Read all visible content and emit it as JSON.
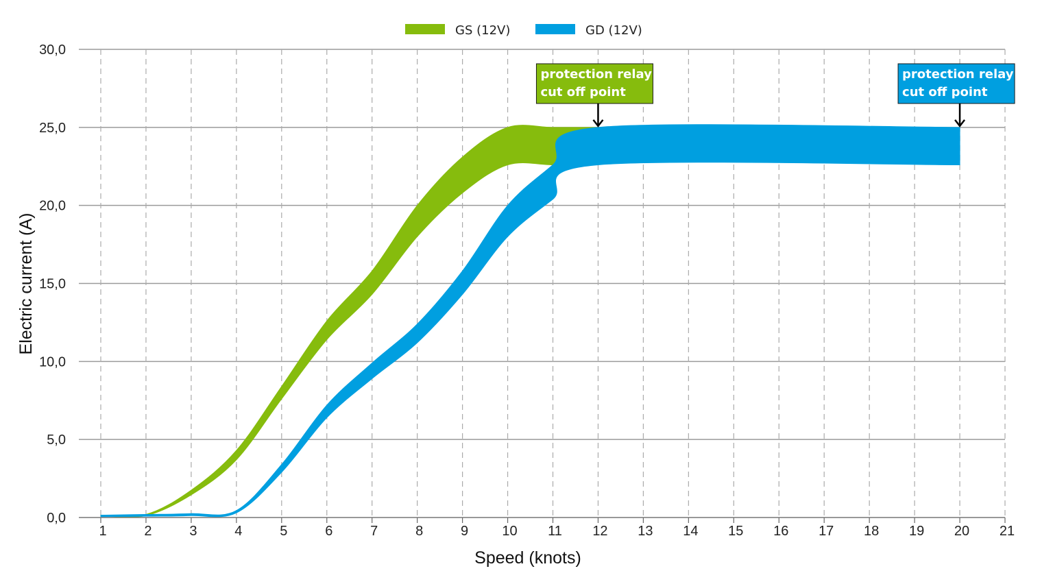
{
  "chart_data": {
    "type": "area",
    "title": "",
    "xlabel": "Speed (knots)",
    "ylabel": "Electric current (A)",
    "xlim": [
      1,
      21
    ],
    "ylim": [
      0,
      30
    ],
    "x_ticks": [
      1,
      2,
      3,
      4,
      5,
      6,
      7,
      8,
      9,
      10,
      11,
      12,
      13,
      14,
      15,
      16,
      17,
      18,
      19,
      20,
      21
    ],
    "y_ticks": [
      0,
      5,
      10,
      15,
      20,
      25,
      30
    ],
    "y_tick_labels": [
      "0,0",
      "5,0",
      "10,0",
      "15,0",
      "20,0",
      "25,0",
      "30,0"
    ],
    "grid": {
      "horizontal": "solid",
      "vertical": "dashed"
    },
    "legend_position": "top-center",
    "series": [
      {
        "name": "GS (12V)",
        "color": "#86bc0d",
        "band": [
          {
            "x": 1,
            "low": 0.1,
            "high": 0.15
          },
          {
            "x": 2,
            "low": 0.12,
            "high": 0.2
          },
          {
            "x": 3,
            "low": 1.45,
            "high": 1.75
          },
          {
            "x": 4,
            "low": 3.7,
            "high": 4.3
          },
          {
            "x": 5,
            "low": 7.6,
            "high": 8.4
          },
          {
            "x": 6,
            "low": 11.4,
            "high": 12.6
          },
          {
            "x": 7,
            "low": 14.3,
            "high": 15.8
          },
          {
            "x": 8,
            "low": 18.0,
            "high": 20.0
          },
          {
            "x": 9,
            "low": 20.8,
            "high": 23.1
          },
          {
            "x": 10,
            "low": 22.6,
            "high": 25.0
          },
          {
            "x": 11,
            "low": 22.6,
            "high": 25.0
          },
          {
            "x": 12,
            "low": 22.6,
            "high": 25.0
          }
        ]
      },
      {
        "name": "GD (12V)",
        "color": "#009fe0",
        "band": [
          {
            "x": 1,
            "low": 0.05,
            "high": 0.15
          },
          {
            "x": 2,
            "low": 0.08,
            "high": 0.2
          },
          {
            "x": 3,
            "low": 0.12,
            "high": 0.25
          },
          {
            "x": 4,
            "low": 0.3,
            "high": 0.45
          },
          {
            "x": 5,
            "low": 2.9,
            "high": 3.4
          },
          {
            "x": 6,
            "low": 6.4,
            "high": 7.2
          },
          {
            "x": 7,
            "low": 8.9,
            "high": 9.9
          },
          {
            "x": 8,
            "low": 11.2,
            "high": 12.4
          },
          {
            "x": 9,
            "low": 14.3,
            "high": 15.8
          },
          {
            "x": 10,
            "low": 18.0,
            "high": 20.0
          },
          {
            "x": 11,
            "low": 20.4,
            "high": 22.6
          },
          {
            "x": 12,
            "low": 22.6,
            "high": 25.0
          },
          {
            "x": 20,
            "low": 22.6,
            "high": 25.0
          }
        ]
      }
    ],
    "annotations": [
      {
        "text": [
          "protection relay",
          "cut off point"
        ],
        "x": 12,
        "y": 25,
        "color": "#86bc0d"
      },
      {
        "text": [
          "protection relay",
          "cut off point"
        ],
        "x": 20,
        "y": 25,
        "color": "#009fe0"
      }
    ]
  }
}
